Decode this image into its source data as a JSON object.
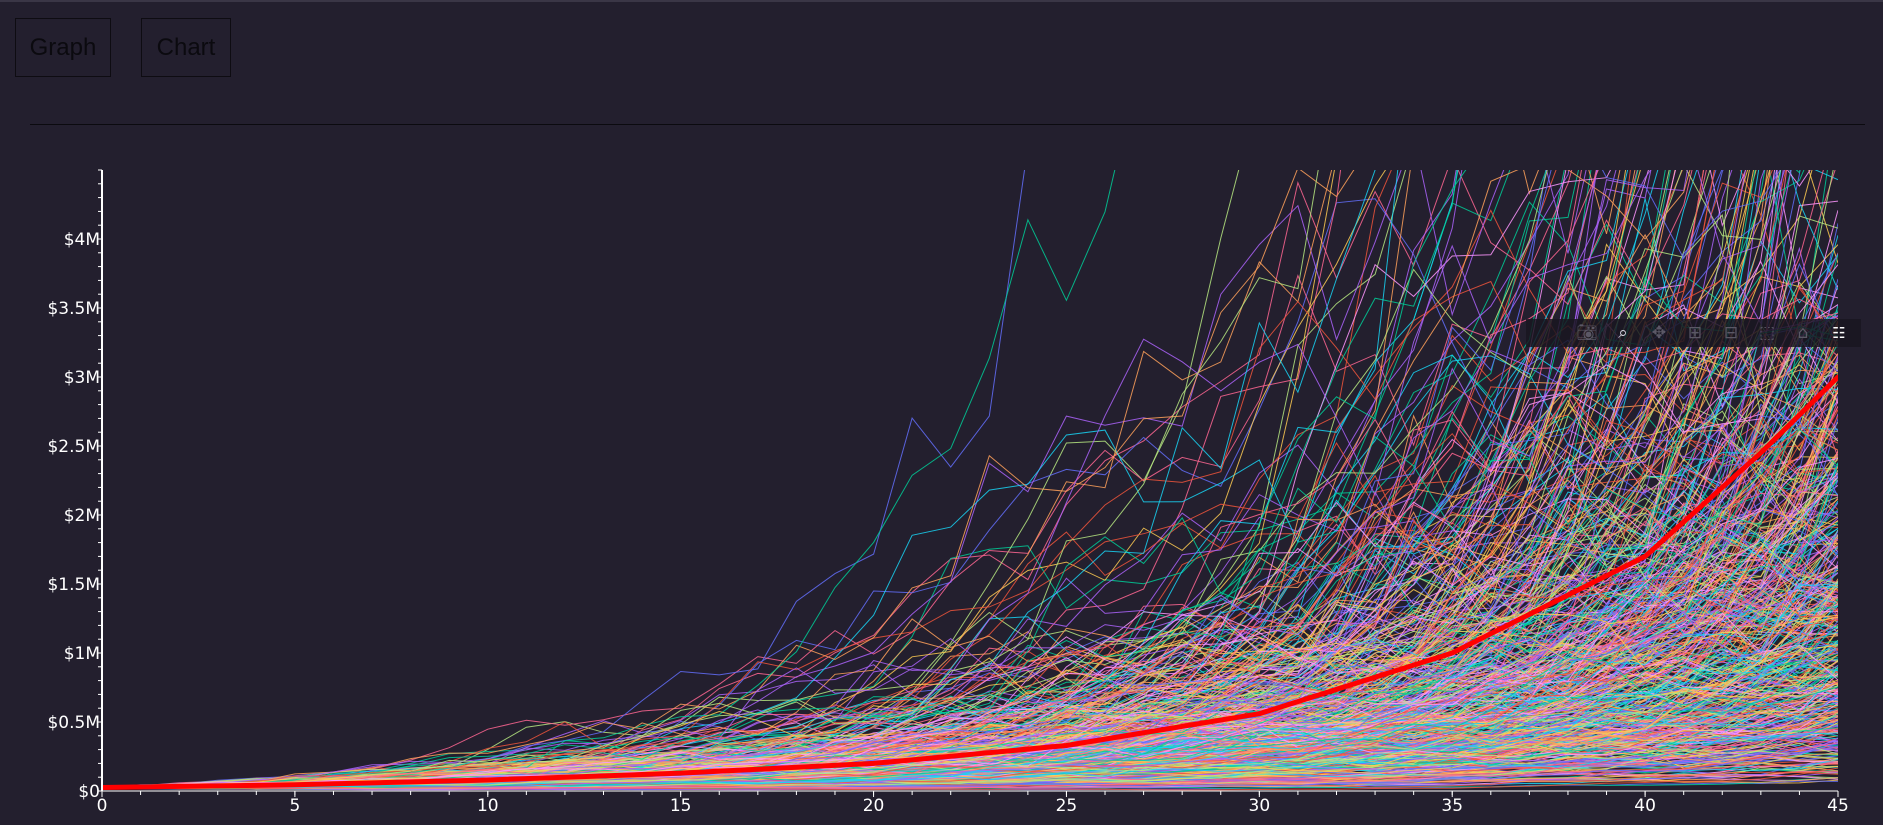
{
  "buttons": {
    "graph_label": "Graph",
    "chart_label": "Chart"
  },
  "modebar": {
    "icons": [
      "camera-icon",
      "zoom-icon",
      "pan-icon",
      "zoom-in-icon",
      "zoom-out-icon",
      "autoscale-icon",
      "reset-axes-icon",
      "plotly-logo-icon"
    ],
    "active": "zoom-icon"
  },
  "colors": {
    "background": "#231f2e",
    "median_line": "#ff0000",
    "axis": "#ffffff"
  },
  "chart_data": {
    "type": "line",
    "title": "",
    "xlabel": "",
    "ylabel": "",
    "xlim": [
      0,
      45
    ],
    "ylim": [
      0,
      4500000
    ],
    "x_ticks": [
      0,
      5,
      10,
      15,
      20,
      25,
      30,
      35,
      40,
      45
    ],
    "x_tick_labels": [
      "0",
      "5",
      "10",
      "15",
      "20",
      "25",
      "30",
      "35",
      "40",
      "45"
    ],
    "y_ticks": [
      0,
      500000,
      1000000,
      1500000,
      2000000,
      2500000,
      3000000,
      3500000,
      4000000
    ],
    "y_tick_labels": [
      "$0",
      "$0.5M",
      "$1M",
      "$1.5M",
      "$2M",
      "$2.5M",
      "$3M",
      "$3.5M",
      "$4M"
    ],
    "grid": false,
    "legend": "none",
    "simulation_paths": {
      "count": 600,
      "palette": [
        "#636efa",
        "#ef553b",
        "#00cc96",
        "#ab63fa",
        "#ffa15a",
        "#19d3f3",
        "#ff6692",
        "#b6e880",
        "#ff97ff",
        "#fecb52"
      ],
      "start_value": 25000,
      "annual_growth_mean": 0.09,
      "annual_growth_volatility": 0.17,
      "contribution_per_year": 0,
      "seed": 7
    },
    "series": [
      {
        "x": [
          0,
          5,
          10,
          15,
          20,
          25,
          30,
          35,
          40,
          43,
          45
        ],
        "y": [
          25000,
          45000,
          80000,
          130000,
          200000,
          330000,
          560000,
          1000000,
          1700000,
          2450000,
          3000000
        ],
        "color": "#ff0000",
        "width": 5
      }
    ]
  }
}
